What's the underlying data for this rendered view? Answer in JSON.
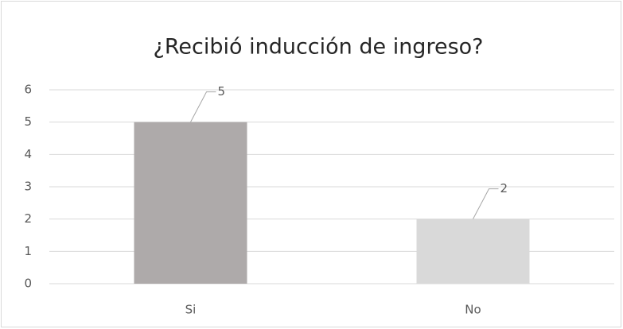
{
  "chart_data": {
    "type": "bar",
    "title": "¿Recibió inducción de ingreso?",
    "categories": [
      "Si",
      "No"
    ],
    "values": [
      5,
      2
    ],
    "colors": [
      "#aeaaaa",
      "#d9d9d9"
    ],
    "ylim": [
      0,
      6
    ],
    "yticks": [
      0,
      1,
      2,
      3,
      4,
      5,
      6
    ],
    "grid": true,
    "data_labels": true
  }
}
